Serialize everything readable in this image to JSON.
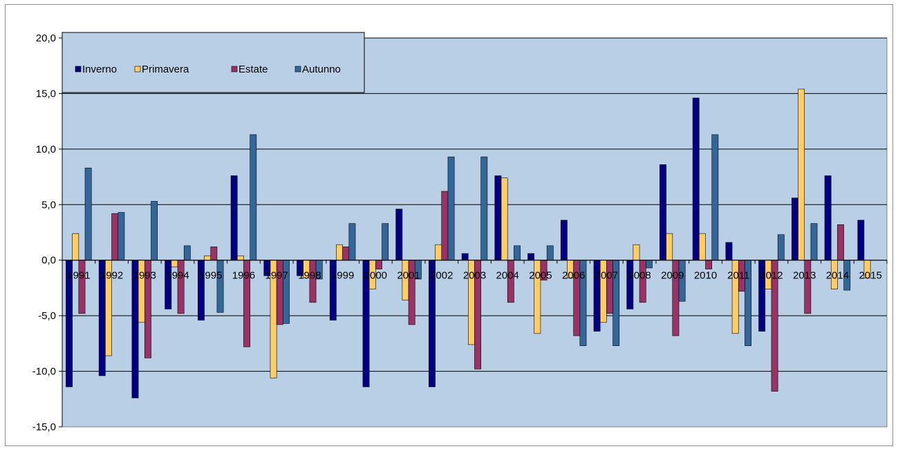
{
  "chart_data": {
    "type": "bar",
    "title": "",
    "xlabel": "",
    "ylabel": "",
    "ylim": [
      -15,
      20
    ],
    "ytick_step": 5,
    "ytick_labels": [
      "-15,0",
      "-10,0",
      "-5,0",
      "0,0",
      "5,0",
      "10,0",
      "15,0",
      "20,0"
    ],
    "grid": true,
    "legend_position": "top-left",
    "categories": [
      "1991",
      "1992",
      "1993",
      "1994",
      "1995",
      "1996",
      "1997",
      "1998",
      "1999",
      "2000",
      "2001",
      "2002",
      "2003",
      "2004",
      "2005",
      "2006",
      "2007",
      "2008",
      "2009",
      "2010",
      "2011",
      "2012",
      "2013",
      "2014",
      "2015"
    ],
    "series": [
      {
        "name": "Inverno",
        "color": "#000080",
        "values": [
          -11.4,
          -10.4,
          -12.4,
          -4.4,
          -5.4,
          7.6,
          -1.4,
          -1.4,
          -5.4,
          -11.4,
          4.6,
          -11.4,
          0.6,
          7.6,
          0.6,
          3.6,
          -6.4,
          -4.4,
          8.6,
          14.6,
          1.6,
          -6.4,
          5.6,
          7.6,
          3.6
        ]
      },
      {
        "name": "Primavera",
        "color": "#ffcc66",
        "values": [
          2.4,
          -8.6,
          -5.6,
          -0.6,
          0.4,
          0.4,
          -10.6,
          -1.6,
          1.4,
          -2.6,
          -3.6,
          1.4,
          -7.6,
          7.4,
          -6.6,
          -1.6,
          -5.6,
          1.4,
          2.4,
          2.4,
          -6.6,
          -2.6,
          15.4,
          -2.6,
          -1.6
        ]
      },
      {
        "name": "Estate",
        "color": "#993366",
        "values": [
          -4.8,
          4.2,
          -8.8,
          -4.8,
          1.2,
          -7.8,
          -5.8,
          -3.8,
          1.2,
          -0.8,
          -5.8,
          6.2,
          -9.8,
          -3.8,
          -1.8,
          -6.8,
          -4.8,
          -3.8,
          -6.8,
          -0.8,
          -2.8,
          -11.8,
          -4.8,
          3.2,
          null
        ]
      },
      {
        "name": "Autunno",
        "color": "#336699",
        "values": [
          8.3,
          4.3,
          5.3,
          1.3,
          -4.7,
          11.3,
          -5.7,
          -1.7,
          3.3,
          3.3,
          -1.7,
          9.3,
          9.3,
          1.3,
          1.3,
          -7.7,
          -7.7,
          -0.7,
          -3.7,
          11.3,
          -7.7,
          2.3,
          3.3,
          -2.7,
          null
        ]
      }
    ],
    "colors": {
      "plot_background": "#b9cfe6",
      "gridline": "#000000",
      "axis": "#000000",
      "frame_border": "#8c8c8c"
    }
  }
}
